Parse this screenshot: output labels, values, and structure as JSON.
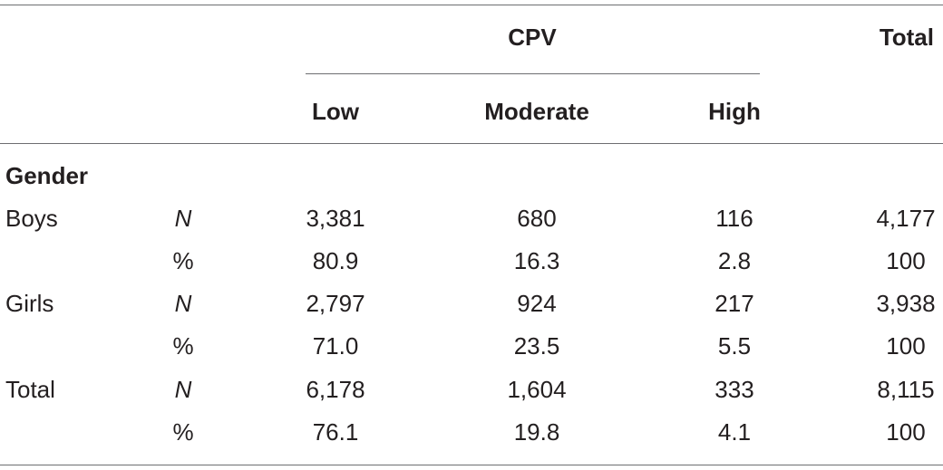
{
  "header": {
    "group_label": "CPV",
    "total_label": "Total",
    "columns": [
      "Low",
      "Moderate",
      "High"
    ]
  },
  "section_label": "Gender",
  "rows": [
    {
      "group": "Boys",
      "stat": "N",
      "low": "3,381",
      "moderate": "680",
      "high": "116",
      "total": "4,177"
    },
    {
      "group": "",
      "stat": "%",
      "low": "80.9",
      "moderate": "16.3",
      "high": "2.8",
      "total": "100"
    },
    {
      "group": "Girls",
      "stat": "N",
      "low": "2,797",
      "moderate": "924",
      "high": "217",
      "total": "3,938"
    },
    {
      "group": "",
      "stat": "%",
      "low": "71.0",
      "moderate": "23.5",
      "high": "5.5",
      "total": "100"
    },
    {
      "group": "Total",
      "stat": "N",
      "low": "6,178",
      "moderate": "1,604",
      "high": "333",
      "total": "8,115"
    },
    {
      "group": "",
      "stat": "%",
      "low": "76.1",
      "moderate": "19.8",
      "high": "4.1",
      "total": "100"
    }
  ]
}
